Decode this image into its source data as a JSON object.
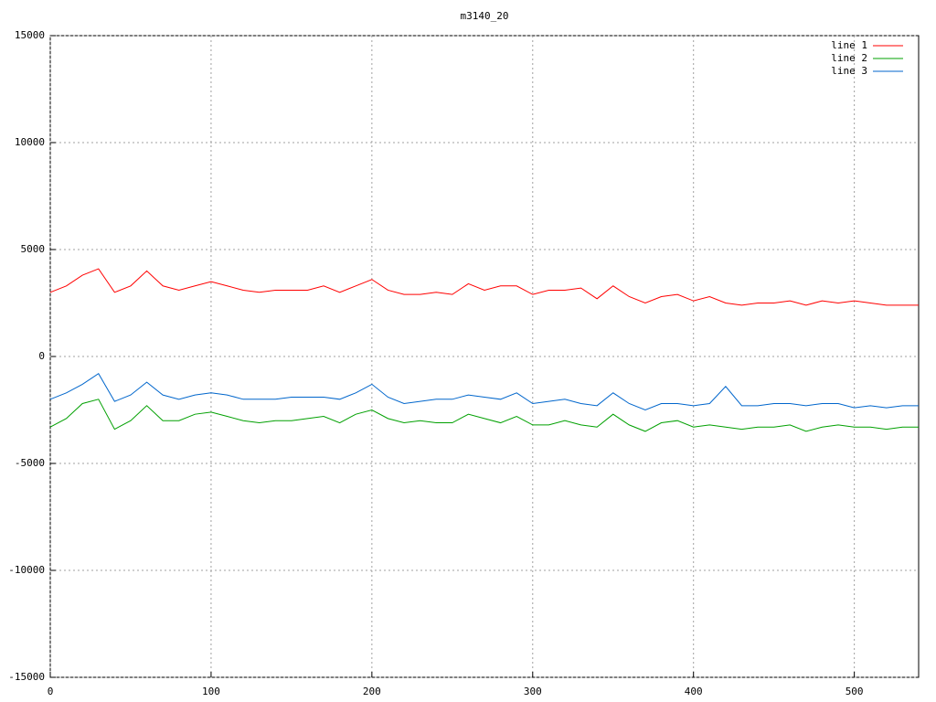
{
  "chart_data": {
    "type": "line",
    "title": "m3140_20",
    "x": [
      0,
      10,
      20,
      30,
      40,
      50,
      60,
      70,
      80,
      90,
      100,
      110,
      120,
      130,
      140,
      150,
      160,
      170,
      180,
      190,
      200,
      210,
      220,
      230,
      240,
      250,
      260,
      270,
      280,
      290,
      300,
      310,
      320,
      330,
      340,
      350,
      360,
      370,
      380,
      390,
      400,
      410,
      420,
      430,
      440,
      450,
      460,
      470,
      480,
      490,
      500,
      510,
      520,
      530,
      540
    ],
    "series": [
      {
        "name": "line 1",
        "color": "#ff0000",
        "values": [
          3000,
          3300,
          3800,
          4100,
          3000,
          3300,
          4000,
          3300,
          3100,
          3300,
          3500,
          3300,
          3100,
          3000,
          3100,
          3100,
          3100,
          3300,
          3000,
          3300,
          3600,
          3100,
          2900,
          2900,
          3000,
          2900,
          3400,
          3100,
          3300,
          3300,
          2900,
          3100,
          3100,
          3200,
          2700,
          3300,
          2800,
          2500,
          2800,
          2900,
          2600,
          2800,
          2500,
          2400,
          2500,
          2500,
          2600,
          2400,
          2600,
          2500,
          2600,
          2500,
          2400,
          2400,
          2400
        ]
      },
      {
        "name": "line 2",
        "color": "#00a000",
        "values": [
          -3300,
          -2900,
          -2200,
          -2000,
          -3400,
          -3000,
          -2300,
          -3000,
          -3000,
          -2700,
          -2600,
          -2800,
          -3000,
          -3100,
          -3000,
          -3000,
          -2900,
          -2800,
          -3100,
          -2700,
          -2500,
          -2900,
          -3100,
          -3000,
          -3100,
          -3100,
          -2700,
          -2900,
          -3100,
          -2800,
          -3200,
          -3200,
          -3000,
          -3200,
          -3300,
          -2700,
          -3200,
          -3500,
          -3100,
          -3000,
          -3300,
          -3200,
          -3300,
          -3400,
          -3300,
          -3300,
          -3200,
          -3500,
          -3300,
          -3200,
          -3300,
          -3300,
          -3400,
          -3300,
          -3300
        ]
      },
      {
        "name": "line 3",
        "color": "#0066cc",
        "values": [
          -2000,
          -1700,
          -1300,
          -800,
          -2100,
          -1800,
          -1200,
          -1800,
          -2000,
          -1800,
          -1700,
          -1800,
          -2000,
          -2000,
          -2000,
          -1900,
          -1900,
          -1900,
          -2000,
          -1700,
          -1300,
          -1900,
          -2200,
          -2100,
          -2000,
          -2000,
          -1800,
          -1900,
          -2000,
          -1700,
          -2200,
          -2100,
          -2000,
          -2200,
          -2300,
          -1700,
          -2200,
          -2500,
          -2200,
          -2200,
          -2300,
          -2200,
          -1400,
          -2300,
          -2300,
          -2200,
          -2200,
          -2300,
          -2200,
          -2200,
          -2400,
          -2300,
          -2400,
          -2300,
          -2300
        ]
      }
    ],
    "xlim": [
      0,
      540
    ],
    "xticks": [
      0,
      100,
      200,
      300,
      400,
      500
    ],
    "ylim": [
      -15000,
      15000
    ],
    "yticks": [
      -15000,
      -10000,
      -5000,
      0,
      5000,
      10000,
      15000
    ],
    "grid": true,
    "legend": "top-right"
  }
}
